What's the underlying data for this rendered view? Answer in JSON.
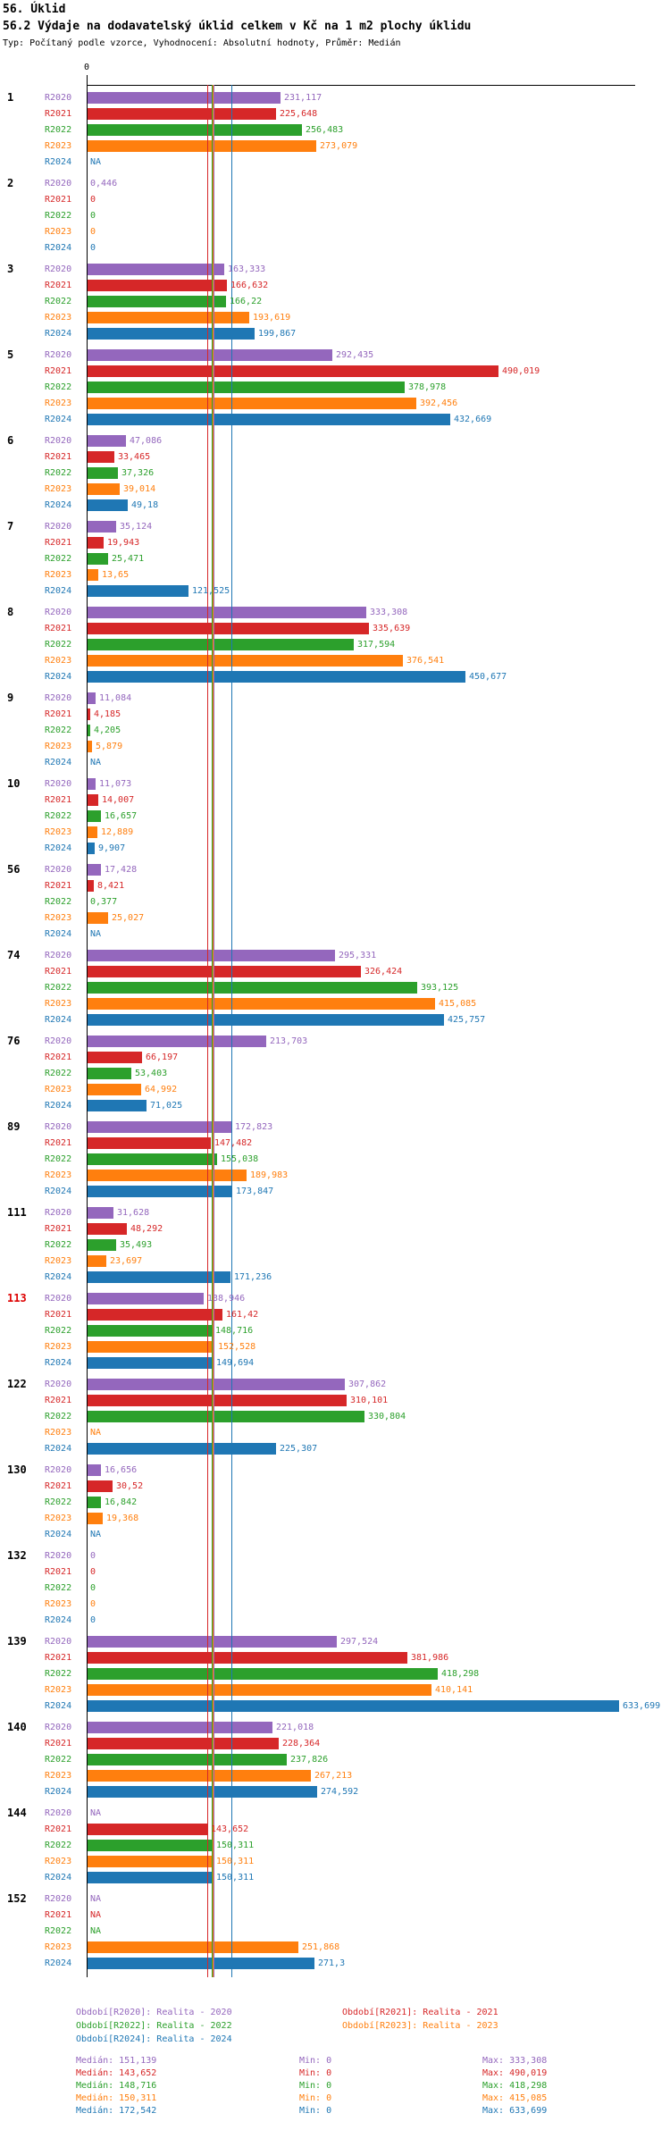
{
  "header": {
    "title": "56. Úklid",
    "subtitle": "56.2 Výdaje na dodavatelský úklid celkem v Kč na 1 m2 plochy úklidu",
    "meta": "Typ: Počítaný podle vzorce, Vyhodnocení: Absolutní hodnoty, Průměr: Medián"
  },
  "axis": {
    "zero_label": "0"
  },
  "colors": {
    "highlight_group": "#dd0000",
    "axis": "#000000",
    "background": "#ffffff"
  },
  "stats_labels": {
    "median": "Medián:",
    "min": "Min:",
    "max": "Max:"
  },
  "years": [
    {
      "key": "R2020",
      "color": "#9467bd",
      "legend": "Období[R2020]: Realita - 2020",
      "median": 151.139,
      "stats": {
        "median": "151,139",
        "min": "0",
        "max": "333,308"
      }
    },
    {
      "key": "R2021",
      "color": "#d62728",
      "legend": "Období[R2021]: Realita - 2021",
      "median": 143.652,
      "stats": {
        "median": "143,652",
        "min": "0",
        "max": "490,019"
      }
    },
    {
      "key": "R2022",
      "color": "#2ca02c",
      "legend": "Období[R2022]: Realita - 2022",
      "median": 148.716,
      "stats": {
        "median": "148,716",
        "min": "0",
        "max": "418,298"
      }
    },
    {
      "key": "R2023",
      "color": "#ff7f0e",
      "legend": "Období[R2023]: Realita - 2023",
      "median": 150.311,
      "stats": {
        "median": "150,311",
        "min": "0",
        "max": "415,085"
      }
    },
    {
      "key": "R2024",
      "color": "#1f77b4",
      "legend": "Období[R2024]: Realita - 2024",
      "median": 172.542,
      "stats": {
        "median": "172,542",
        "min": "0",
        "max": "633,699"
      }
    }
  ],
  "chart_data": {
    "type": "bar",
    "orientation": "horizontal",
    "title": "56.2 Výdaje na dodavatelský úklid celkem v Kč na 1 m2 plochy úklidu",
    "value_unit": "Kč na 1 m2 plochy úklidu",
    "series_order": [
      "R2020",
      "R2021",
      "R2022",
      "R2023",
      "R2024"
    ],
    "x_axis": {
      "zero_label": "0",
      "min": 0,
      "max_visible_value": 633.699
    },
    "categories": [
      "1",
      "2",
      "3",
      "5",
      "6",
      "7",
      "8",
      "9",
      "10",
      "56",
      "74",
      "76",
      "89",
      "111",
      "113",
      "122",
      "130",
      "132",
      "139",
      "140",
      "144",
      "152"
    ],
    "groups": [
      {
        "id": "1",
        "values": [
          231.117,
          225.648,
          256.483,
          273.079,
          null
        ],
        "labels": [
          "231,117",
          "225,648",
          "256,483",
          "273,079",
          "NA"
        ]
      },
      {
        "id": "2",
        "values": [
          0.446,
          0,
          0,
          0,
          0
        ],
        "labels": [
          "0,446",
          "0",
          "0",
          "0",
          "0"
        ]
      },
      {
        "id": "3",
        "values": [
          163.333,
          166.632,
          166.22,
          193.619,
          199.867
        ],
        "labels": [
          "163,333",
          "166,632",
          "166,22",
          "193,619",
          "199,867"
        ]
      },
      {
        "id": "5",
        "values": [
          292.435,
          490.019,
          378.978,
          392.456,
          432.669
        ],
        "labels": [
          "292,435",
          "490,019",
          "378,978",
          "392,456",
          "432,669"
        ]
      },
      {
        "id": "6",
        "values": [
          47.086,
          33.465,
          37.326,
          39.014,
          49.18
        ],
        "labels": [
          "47,086",
          "33,465",
          "37,326",
          "39,014",
          "49,18"
        ]
      },
      {
        "id": "7",
        "values": [
          35.124,
          19.943,
          25.471,
          13.65,
          121.525
        ],
        "labels": [
          "35,124",
          "19,943",
          "25,471",
          "13,65",
          "121,525"
        ]
      },
      {
        "id": "8",
        "values": [
          333.308,
          335.639,
          317.594,
          376.541,
          450.677
        ],
        "labels": [
          "333,308",
          "335,639",
          "317,594",
          "376,541",
          "450,677"
        ]
      },
      {
        "id": "9",
        "values": [
          11.084,
          4.185,
          4.205,
          5.879,
          null
        ],
        "labels": [
          "11,084",
          "4,185",
          "4,205",
          "5,879",
          "NA"
        ]
      },
      {
        "id": "10",
        "values": [
          11.073,
          14.007,
          16.657,
          12.889,
          9.907
        ],
        "labels": [
          "11,073",
          "14,007",
          "16,657",
          "12,889",
          "9,907"
        ]
      },
      {
        "id": "56",
        "values": [
          17.428,
          8.421,
          0.377,
          25.027,
          null
        ],
        "labels": [
          "17,428",
          "8,421",
          "0,377",
          "25,027",
          "NA"
        ]
      },
      {
        "id": "74",
        "values": [
          295.331,
          326.424,
          393.125,
          415.085,
          425.757
        ],
        "labels": [
          "295,331",
          "326,424",
          "393,125",
          "415,085",
          "425,757"
        ]
      },
      {
        "id": "76",
        "values": [
          213.703,
          66.197,
          53.403,
          64.992,
          71.025
        ],
        "labels": [
          "213,703",
          "66,197",
          "53,403",
          "64,992",
          "71,025"
        ]
      },
      {
        "id": "89",
        "values": [
          172.823,
          147.482,
          155.038,
          189.983,
          173.847
        ],
        "labels": [
          "172,823",
          "147,482",
          "155,038",
          "189,983",
          "173,847"
        ]
      },
      {
        "id": "111",
        "values": [
          31.628,
          48.292,
          35.493,
          23.697,
          171.236
        ],
        "labels": [
          "31,628",
          "48,292",
          "35,493",
          "23,697",
          "171,236"
        ]
      },
      {
        "id": "113",
        "highlight": true,
        "values": [
          138.946,
          161.42,
          148.716,
          152.528,
          149.694
        ],
        "labels": [
          "138,946",
          "161,42",
          "148,716",
          "152,528",
          "149,694"
        ]
      },
      {
        "id": "122",
        "values": [
          307.862,
          310.101,
          330.804,
          null,
          225.307
        ],
        "labels": [
          "307,862",
          "310,101",
          "330,804",
          "NA",
          "225,307"
        ]
      },
      {
        "id": "130",
        "values": [
          16.656,
          30.52,
          16.842,
          19.368,
          null
        ],
        "labels": [
          "16,656",
          "30,52",
          "16,842",
          "19,368",
          "NA"
        ]
      },
      {
        "id": "132",
        "values": [
          0,
          0,
          0,
          0,
          0
        ],
        "labels": [
          "0",
          "0",
          "0",
          "0",
          "0"
        ]
      },
      {
        "id": "139",
        "values": [
          297.524,
          381.986,
          418.298,
          410.141,
          633.699
        ],
        "labels": [
          "297,524",
          "381,986",
          "418,298",
          "410,141",
          "633,699"
        ]
      },
      {
        "id": "140",
        "values": [
          221.018,
          228.364,
          237.826,
          267.213,
          274.592
        ],
        "labels": [
          "221,018",
          "228,364",
          "237,826",
          "267,213",
          "274,592"
        ]
      },
      {
        "id": "144",
        "values": [
          null,
          143.652,
          150.311,
          150.311,
          150.311
        ],
        "labels": [
          "NA",
          "143,652",
          "150,311",
          "150,311",
          "150,311"
        ]
      },
      {
        "id": "152",
        "values": [
          null,
          null,
          null,
          251.868,
          271.3
        ],
        "labels": [
          "NA",
          "NA",
          "NA",
          "251,868",
          "271,3"
        ]
      }
    ]
  }
}
